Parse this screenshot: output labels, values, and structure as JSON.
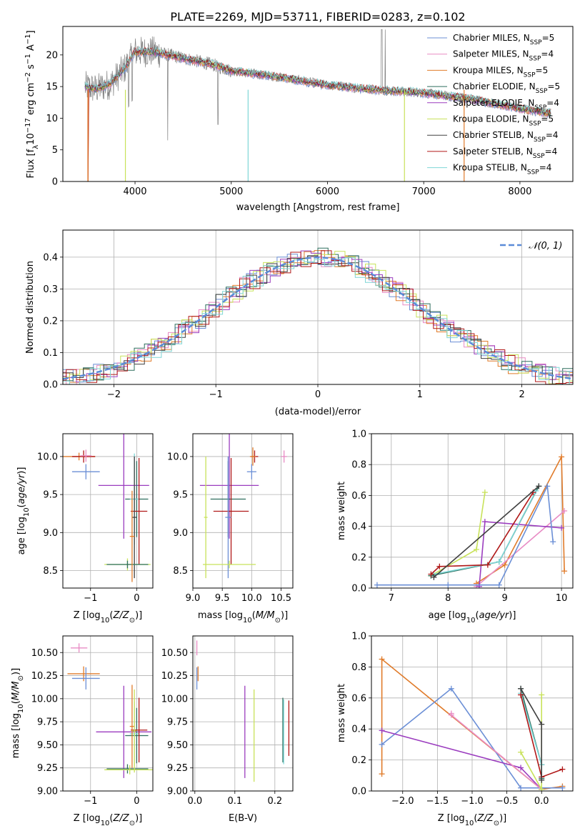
{
  "figure": {
    "title": "PLATE=2269, MJD=53711, FIBERID=0283, z=0.102"
  },
  "chart_data": [
    {
      "id": "spectrum",
      "type": "line",
      "xlabel": "wavelength [Angstrom, rest frame]",
      "ylabel": "Flux [f_λ10^-17 erg cm^-2 s^-1 A^-1]",
      "xlim": [
        3250,
        8550
      ],
      "ylim": [
        0,
        24.5
      ],
      "xticks": [
        4000,
        5000,
        6000,
        7000,
        8000
      ],
      "yticks": [
        0,
        5,
        10,
        15,
        20
      ],
      "legend_position": "top-right",
      "continuum_model": {
        "x": [
          3480,
          3600,
          3750,
          3900,
          4000,
          4200,
          4500,
          4800,
          5000,
          5500,
          6000,
          6500,
          7000,
          7500,
          8000,
          8300
        ],
        "y": [
          15.0,
          14.6,
          15.5,
          18.0,
          20.5,
          20.5,
          19.5,
          18.5,
          17.5,
          16.5,
          15.2,
          14.5,
          14.0,
          13.0,
          11.5,
          10.8
        ]
      },
      "series": [
        {
          "name": "Chabrier MILES, N_SSP=5",
          "color": "#6b8fd6"
        },
        {
          "name": "Salpeter MILES, N_SSP=4",
          "color": "#e88bc4"
        },
        {
          "name": "Kroupa MILES, N_SSP=5",
          "color": "#e07b2a"
        },
        {
          "name": "Chabrier ELODIE, N_SSP=5",
          "color": "#2e6e5e"
        },
        {
          "name": "Salpeter ELODIE, N_SSP=4",
          "color": "#9b3dbf"
        },
        {
          "name": "Kroupa ELODIE, N_SSP=5",
          "color": "#c8e25a"
        },
        {
          "name": "Chabrier STELIB, N_SSP=4",
          "color": "#404040"
        },
        {
          "name": "Salpeter STELIB, N_SSP=4",
          "color": "#b01818"
        },
        {
          "name": "Kroupa STELIB, N_SSP=4",
          "color": "#7fd6d6"
        }
      ],
      "data_color": "#808080"
    },
    {
      "id": "residuals",
      "type": "line",
      "xlabel": "(data-model)/error",
      "ylabel": "Normed distribution",
      "xlim": [
        -2.5,
        2.5
      ],
      "ylim": [
        0,
        0.485
      ],
      "xticks": [
        -2,
        -1,
        0,
        1,
        2
      ],
      "yticks": [
        0.0,
        0.1,
        0.2,
        0.3,
        0.4
      ],
      "grid": true,
      "legend_position": "top-right",
      "legend_label": "𝒩(0, 1)",
      "gaussian_color": "#5b8bd8"
    },
    {
      "id": "age-vs-Z",
      "type": "scatter",
      "xlabel": "Z [log10(Z/Z⊙)]",
      "ylabel": "age  [log10(age/yr)]",
      "xlim": [
        -1.6,
        0.35
      ],
      "ylim": [
        8.27,
        10.3
      ],
      "xticks": [
        -1,
        0
      ],
      "yticks": [
        8.5,
        9.0,
        9.5,
        10.0
      ],
      "grid": true,
      "points": [
        {
          "x": -1.25,
          "y": 10.0,
          "xerr": 0.35,
          "yerr": 0.05,
          "color": "#e07b2a"
        },
        {
          "x": -1.15,
          "y": 10.0,
          "xerr": 0.25,
          "yerr": 0.08,
          "color": "#b01818"
        },
        {
          "x": -1.1,
          "y": 9.8,
          "xerr": 0.3,
          "yerr": 0.1,
          "color": "#6b8fd6"
        },
        {
          "x": -1.1,
          "y": 10.01,
          "xerr": 0.12,
          "yerr": 0.08,
          "color": "#e88bc4"
        },
        {
          "x": -0.28,
          "y": 9.62,
          "xerr": 0.55,
          "yerr": 0.7,
          "color": "#9b3dbf"
        },
        {
          "x": 0.0,
          "y": 9.44,
          "xerr": 0.25,
          "yerr": 0.5,
          "color": "#2e6e5e"
        },
        {
          "x": -0.05,
          "y": 9.44,
          "xerr": 0.1,
          "yerr": 0.6,
          "color": "#7fd6d6"
        },
        {
          "x": 0.05,
          "y": 9.28,
          "xerr": 0.18,
          "yerr": 0.7,
          "color": "#b01818"
        },
        {
          "x": -0.05,
          "y": 9.2,
          "xerr": 0.05,
          "yerr": 0.8,
          "color": "#404040"
        },
        {
          "x": -0.2,
          "y": 8.58,
          "xerr": 0.5,
          "yerr": 0.08,
          "color": "#c8e25a"
        },
        {
          "x": -0.2,
          "y": 8.58,
          "xerr": 0.45,
          "yerr": 0.05,
          "color": "#2e6e5e"
        },
        {
          "x": -0.1,
          "y": 8.95,
          "xerr": 0.05,
          "yerr": 0.6,
          "color": "#e07b2a"
        }
      ]
    },
    {
      "id": "age-vs-mass",
      "type": "scatter",
      "xlabel": "mass [log10(M/M⊙)]",
      "ylabel": "",
      "xlim": [
        9.0,
        10.7
      ],
      "ylim": [
        8.27,
        10.3
      ],
      "xticks": [
        9.0,
        9.5,
        10.0,
        10.5
      ],
      "yticks": [
        8.5,
        9.0,
        9.5,
        10.0
      ],
      "grid": true,
      "points": [
        {
          "x": 10.55,
          "y": 10.0,
          "xerr": 0.05,
          "yerr": 0.08,
          "color": "#e88bc4"
        },
        {
          "x": 10.05,
          "y": 10.0,
          "xerr": 0.06,
          "yerr": 0.08,
          "color": "#b01818"
        },
        {
          "x": 10.02,
          "y": 10.0,
          "xerr": 0.05,
          "yerr": 0.12,
          "color": "#e07b2a"
        },
        {
          "x": 10.0,
          "y": 9.8,
          "xerr": 0.08,
          "yerr": 0.1,
          "color": "#6b8fd6"
        },
        {
          "x": 9.62,
          "y": 9.62,
          "xerr": 0.5,
          "yerr": 0.7,
          "color": "#9b3dbf"
        },
        {
          "x": 9.6,
          "y": 9.44,
          "xerr": 0.3,
          "yerr": 0.5,
          "color": "#2e6e5e"
        },
        {
          "x": 9.65,
          "y": 9.28,
          "xerr": 0.3,
          "yerr": 0.7,
          "color": "#b01818"
        },
        {
          "x": 9.6,
          "y": 9.2,
          "xerr": 0.05,
          "yerr": 0.8,
          "color": "#6b8fd6"
        },
        {
          "x": 9.22,
          "y": 9.2,
          "xerr": 0.03,
          "yerr": 0.8,
          "color": "#c8e25a"
        },
        {
          "x": 9.62,
          "y": 8.58,
          "xerr": 0.45,
          "yerr": 0.05,
          "color": "#c8e25a"
        }
      ]
    },
    {
      "id": "mass-weight-vs-age",
      "type": "line",
      "xlabel": "age  [log10(age/yr)]",
      "ylabel": "mass weight",
      "xlim": [
        6.65,
        10.2
      ],
      "ylim": [
        0,
        1.0
      ],
      "xticks": [
        7,
        8,
        9,
        10
      ],
      "yticks": [
        0.0,
        0.2,
        0.4,
        0.6,
        0.8,
        1.0
      ],
      "grid": true,
      "series": [
        {
          "color": "#e07b2a",
          "x": [
            8.5,
            9.0,
            10.0,
            10.05
          ],
          "y": [
            0.03,
            0.15,
            0.85,
            0.11
          ]
        },
        {
          "color": "#e88bc4",
          "x": [
            8.5,
            10.05
          ],
          "y": [
            0.01,
            0.5
          ]
        },
        {
          "color": "#9b3dbf",
          "x": [
            8.55,
            8.65,
            10.0
          ],
          "y": [
            0.01,
            0.43,
            0.39
          ]
        },
        {
          "color": "#6b8fd6",
          "x": [
            6.75,
            8.0,
            8.9,
            9.75,
            9.85
          ],
          "y": [
            0.02,
            0.02,
            0.02,
            0.66,
            0.3
          ]
        },
        {
          "color": "#c8e25a",
          "x": [
            7.7,
            8.5,
            8.65
          ],
          "y": [
            0.08,
            0.25,
            0.62
          ]
        },
        {
          "color": "#2e6e5e",
          "x": [
            7.7,
            8.9,
            9.6
          ],
          "y": [
            0.08,
            0.17,
            0.66
          ]
        },
        {
          "color": "#7fd6d6",
          "x": [
            7.75,
            8.9,
            9.55
          ],
          "y": [
            0.09,
            0.17,
            0.63
          ]
        },
        {
          "color": "#b01818",
          "x": [
            7.7,
            7.85,
            8.7,
            9.5
          ],
          "y": [
            0.09,
            0.14,
            0.15,
            0.62
          ]
        },
        {
          "color": "#404040",
          "x": [
            7.75,
            9.6
          ],
          "y": [
            0.07,
            0.66
          ]
        }
      ]
    },
    {
      "id": "mass-vs-Z",
      "type": "scatter",
      "xlabel": "Z [log10(Z/Z⊙)]",
      "ylabel": "mass [log10(M/M⊙)]",
      "xlim": [
        -1.6,
        0.35
      ],
      "ylim": [
        9.0,
        10.68
      ],
      "xticks": [
        -1,
        0
      ],
      "yticks": [
        9.0,
        9.25,
        9.5,
        9.75,
        10.0,
        10.25,
        10.5
      ],
      "grid": true,
      "points": [
        {
          "x": -1.25,
          "y": 10.55,
          "xerr": 0.18,
          "yerr": 0.05,
          "color": "#e88bc4"
        },
        {
          "x": -1.15,
          "y": 10.27,
          "xerr": 0.35,
          "yerr": 0.08,
          "color": "#e07b2a"
        },
        {
          "x": -1.1,
          "y": 10.22,
          "xerr": 0.3,
          "yerr": 0.12,
          "color": "#6b8fd6"
        },
        {
          "x": -0.28,
          "y": 9.64,
          "xerr": 0.6,
          "yerr": 0.5,
          "color": "#9b3dbf"
        },
        {
          "x": 0.0,
          "y": 9.6,
          "xerr": 0.25,
          "yerr": 0.3,
          "color": "#2e6e5e"
        },
        {
          "x": -0.05,
          "y": 9.62,
          "xerr": 0.1,
          "yerr": 0.35,
          "color": "#7fd6d6"
        },
        {
          "x": 0.05,
          "y": 9.66,
          "xerr": 0.18,
          "yerr": 0.35,
          "color": "#b01818"
        },
        {
          "x": -0.1,
          "y": 9.7,
          "xerr": 0.05,
          "yerr": 0.45,
          "color": "#e07b2a"
        },
        {
          "x": -0.2,
          "y": 9.24,
          "xerr": 0.45,
          "yerr": 0.05,
          "color": "#2e6e5e"
        },
        {
          "x": -0.15,
          "y": 9.23,
          "xerr": 0.55,
          "yerr": 0.05,
          "color": "#c8e25a"
        },
        {
          "x": -0.05,
          "y": 9.65,
          "xerr": 0.05,
          "yerr": 0.45,
          "color": "#c8e25a"
        }
      ]
    },
    {
      "id": "mass-vs-EBV",
      "type": "scatter",
      "xlabel": "E(B-V)",
      "ylabel": "",
      "xlim": [
        -0.005,
        0.245
      ],
      "ylim": [
        9.0,
        10.68
      ],
      "xticks": [
        0.0,
        0.1,
        0.2
      ],
      "yticks": [
        9.0,
        9.25,
        9.5,
        9.75,
        10.0,
        10.25,
        10.5
      ],
      "grid": true,
      "points": [
        {
          "x": 0.005,
          "y": 10.55,
          "xerr": 0.0,
          "yerr": 0.08,
          "color": "#e88bc4"
        },
        {
          "x": 0.008,
          "y": 10.27,
          "xerr": 0.0,
          "yerr": 0.08,
          "color": "#e07b2a"
        },
        {
          "x": 0.005,
          "y": 10.22,
          "xerr": 0.0,
          "yerr": 0.12,
          "color": "#6b8fd6"
        },
        {
          "x": 0.125,
          "y": 9.64,
          "xerr": 0.0,
          "yerr": 0.5,
          "color": "#9b3dbf"
        },
        {
          "x": 0.148,
          "y": 9.6,
          "xerr": 0.0,
          "yerr": 0.5,
          "color": "#c8e25a"
        },
        {
          "x": 0.22,
          "y": 9.66,
          "xerr": 0.0,
          "yerr": 0.35,
          "color": "#2e6e5e"
        },
        {
          "x": 0.222,
          "y": 9.64,
          "xerr": 0.0,
          "yerr": 0.35,
          "color": "#7fd6d6"
        },
        {
          "x": 0.235,
          "y": 9.68,
          "xerr": 0.0,
          "yerr": 0.3,
          "color": "#b01818"
        }
      ]
    },
    {
      "id": "mass-weight-vs-Z",
      "type": "line",
      "xlabel": "Z [log10(Z/Z⊙)]",
      "ylabel": "mass weight",
      "xlim": [
        -2.45,
        0.45
      ],
      "ylim": [
        0,
        1.0
      ],
      "xticks": [
        -2.0,
        -1.5,
        -1.0,
        -0.5,
        0.0
      ],
      "yticks": [
        0.0,
        0.2,
        0.4,
        0.6,
        0.8,
        1.0
      ],
      "grid": true,
      "series": [
        {
          "color": "#e07b2a",
          "x": [
            -2.3,
            -2.3,
            0.0,
            0.3
          ],
          "y": [
            0.11,
            0.85,
            0.01,
            0.03
          ]
        },
        {
          "color": "#6b8fd6",
          "x": [
            -2.3,
            -1.3,
            -0.3,
            0.0,
            0.3
          ],
          "y": [
            0.3,
            0.66,
            0.02,
            0.02,
            0.02
          ]
        },
        {
          "color": "#9b3dbf",
          "x": [
            -2.3,
            -0.3,
            0.0
          ],
          "y": [
            0.39,
            0.15,
            0.01
          ]
        },
        {
          "color": "#e88bc4",
          "x": [
            -1.3,
            -1.3,
            0.0
          ],
          "y": [
            0.5,
            0.49,
            0.01
          ]
        },
        {
          "color": "#c8e25a",
          "x": [
            -0.3,
            0.0,
            0.0
          ],
          "y": [
            0.25,
            0.01,
            0.62
          ]
        },
        {
          "color": "#2e6e5e",
          "x": [
            -0.3,
            0.0,
            0.0
          ],
          "y": [
            0.66,
            0.17,
            0.08
          ]
        },
        {
          "color": "#7fd6d6",
          "x": [
            -0.3,
            0.0,
            0.0
          ],
          "y": [
            0.63,
            0.17,
            0.09
          ]
        },
        {
          "color": "#b01818",
          "x": [
            -0.3,
            0.0,
            0.3
          ],
          "y": [
            0.62,
            0.09,
            0.14
          ]
        },
        {
          "color": "#404040",
          "x": [
            -0.3,
            0.0,
            0.0
          ],
          "y": [
            0.66,
            0.43,
            0.07
          ]
        }
      ]
    }
  ]
}
